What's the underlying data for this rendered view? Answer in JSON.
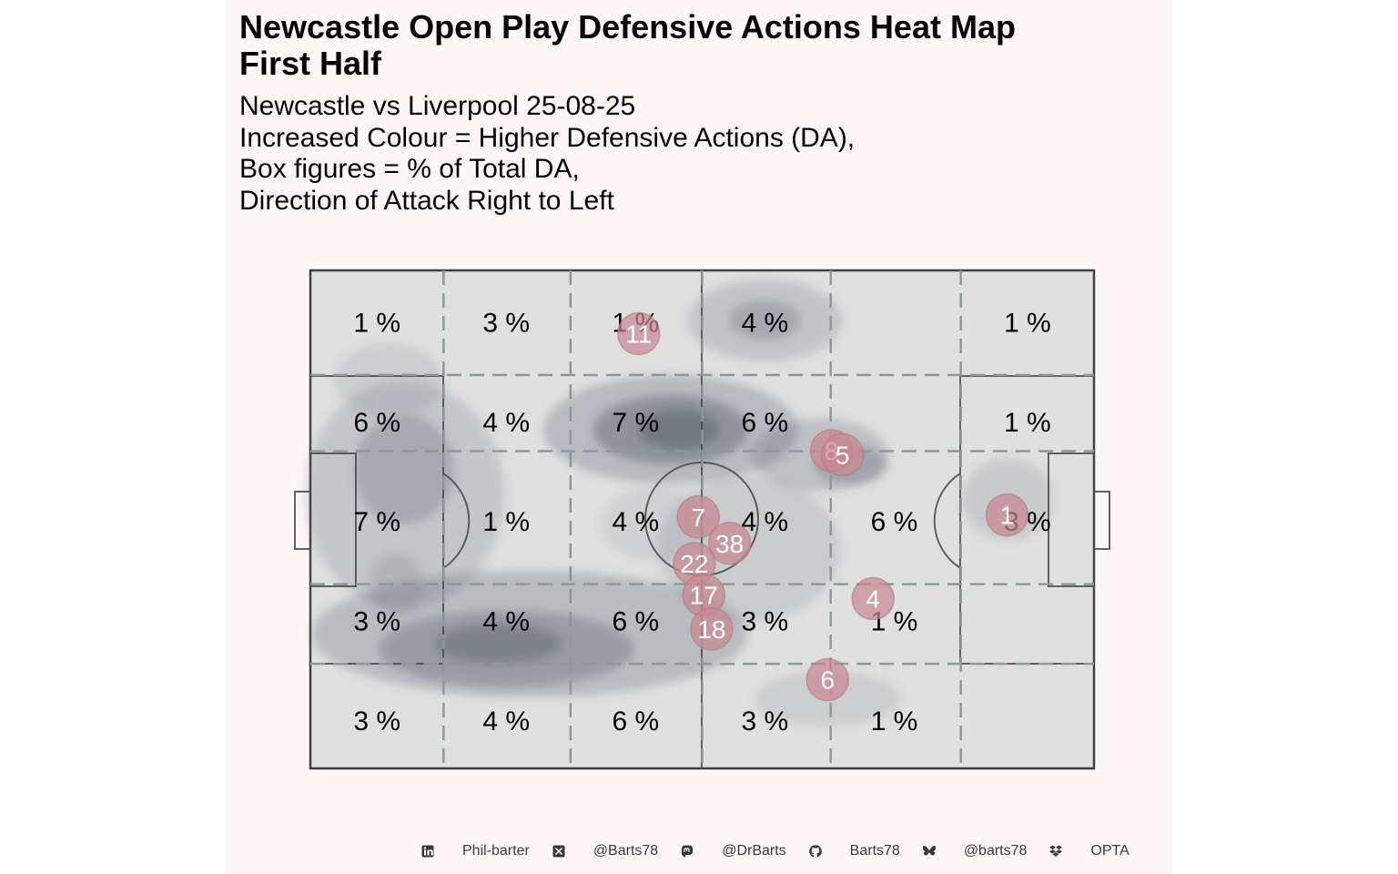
{
  "chart_data": {
    "type": "heatmap",
    "title": "Newcastle Open Play Defensive Actions Heat Map\nFirst Half",
    "subtitle": "Newcastle vs Liverpool 25-08-25\nIncreased Colour = Higher Defensive Actions (DA),\nBox figures = % of Total DA,\nDirection of Attack Right to Left",
    "zones": [
      [
        "1 %",
        "3 %",
        "1 %",
        "4 %",
        "",
        "1 %"
      ],
      [
        "6 %",
        "4 %",
        "7 %",
        "6 %",
        "",
        "1 %"
      ],
      [
        "7 %",
        "1 %",
        "4 %",
        "4 %",
        "6 %",
        "3 %"
      ],
      [
        "3 %",
        "4 %",
        "6 %",
        "3 %",
        "1 %",
        ""
      ],
      [
        "3 %",
        "4 %",
        "6 %",
        "3 %",
        "1 %",
        ""
      ]
    ],
    "players": [
      {
        "number": "11",
        "x": 41.9,
        "y": 87.3
      },
      {
        "number": "8",
        "x": 66.5,
        "y": 63.8
      },
      {
        "number": "5",
        "x": 67.9,
        "y": 63.0
      },
      {
        "number": "7",
        "x": 49.5,
        "y": 50.5
      },
      {
        "number": "38",
        "x": 53.5,
        "y": 45.2
      },
      {
        "number": "22",
        "x": 49.0,
        "y": 41.1
      },
      {
        "number": "17",
        "x": 50.2,
        "y": 34.8
      },
      {
        "number": "18",
        "x": 51.2,
        "y": 28.0
      },
      {
        "number": "4",
        "x": 71.8,
        "y": 34.1
      },
      {
        "number": "6",
        "x": 66.0,
        "y": 17.8
      },
      {
        "number": "1",
        "x": 88.9,
        "y": 50.9
      }
    ],
    "colors": {
      "background": "#fdf7f7",
      "pitch": "#e0e0e0",
      "density": "#5a6570",
      "player_marker": "#c9888f",
      "zone_lines": "#8a9a9a"
    }
  },
  "footer": [
    {
      "icon": "linkedin-icon",
      "label": "Phil-barter"
    },
    {
      "icon": "x-twitter-icon",
      "label": "@Barts78"
    },
    {
      "icon": "mastodon-icon",
      "label": "@DrBarts"
    },
    {
      "icon": "github-icon",
      "label": "Barts78"
    },
    {
      "icon": "bluesky-icon",
      "label": "@barts78"
    },
    {
      "icon": "dropbox-icon",
      "label": "OPTA"
    }
  ]
}
